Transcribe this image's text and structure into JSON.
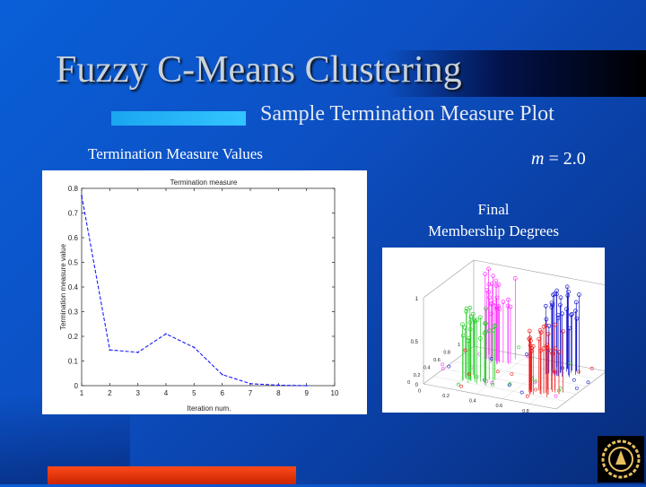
{
  "slide": {
    "title": "Fuzzy C-Means Clustering",
    "subtitle": "Sample Termination Measure Plot",
    "left_label": "Termination Measure Values",
    "formula_var": "m",
    "formula_value": "= 2.0",
    "right_label_line1": "Final",
    "right_label_line2": "Membership Degrees",
    "colors": {
      "accent": "#22b4f8",
      "red_bar": "#e83410",
      "background": "#0a50c4"
    }
  },
  "chart_data": [
    {
      "type": "line",
      "title": "Termination measure",
      "xlabel": "Iteration num.",
      "ylabel": "Termination measure value",
      "xticks": [
        "1",
        "2",
        "3",
        "4",
        "5",
        "6",
        "7",
        "8",
        "9",
        "10"
      ],
      "yticks": [
        "0",
        "0.1",
        "0.2",
        "0.3",
        "0.4",
        "0.5",
        "0.6",
        "0.7",
        "0.8"
      ],
      "xlim": [
        1,
        10
      ],
      "ylim": [
        0,
        0.8
      ],
      "x": [
        1,
        2,
        3,
        4,
        5,
        6,
        7,
        8,
        9
      ],
      "y": [
        0.77,
        0.145,
        0.135,
        0.21,
        0.155,
        0.045,
        0.008,
        0.002,
        0.0
      ],
      "series_color": "#1a1aff",
      "line_style": "dashed",
      "grid": false
    },
    {
      "type": "scatter",
      "subtype": "3d-stem",
      "zticks": [
        "0",
        "0.5",
        "1"
      ],
      "axis_ticks_a": [
        "0",
        "0.2",
        "0.4",
        "0.6",
        "0.8",
        "1"
      ],
      "axis_ticks_b": [
        "0",
        "0.2",
        "0.4",
        "0.6",
        "0.8",
        "1"
      ],
      "clusters": [
        {
          "color": "#ff30ff",
          "center": [
            0.25,
            0.8
          ],
          "membership_max": 1.0
        },
        {
          "color": "#1818d0",
          "center": [
            0.75,
            0.8
          ],
          "membership_max": 1.0
        },
        {
          "color": "#22cc22",
          "center": [
            0.3,
            0.3
          ],
          "membership_max": 0.85
        },
        {
          "color": "#ee1a1a",
          "center": [
            0.8,
            0.3
          ],
          "membership_max": 0.8
        }
      ]
    }
  ]
}
